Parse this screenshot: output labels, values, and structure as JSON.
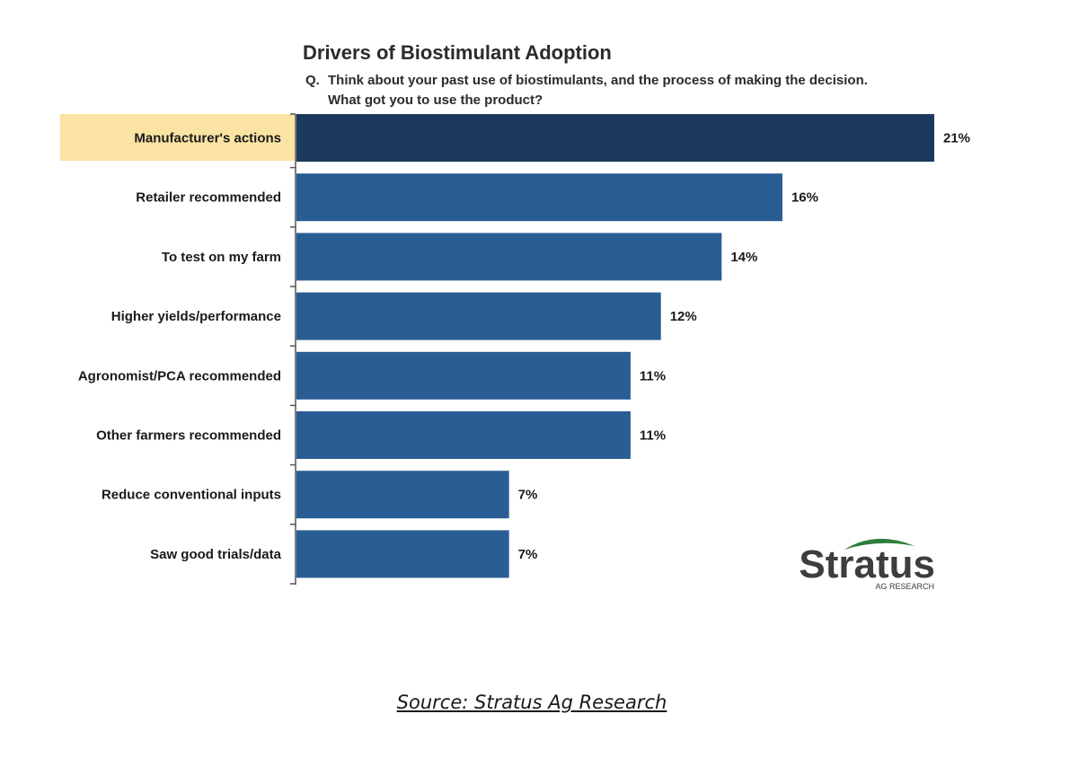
{
  "chart_data": {
    "type": "bar",
    "orientation": "horizontal",
    "title": "Drivers of Biostimulant Adoption",
    "question_prefix": "Q.",
    "question_lines": [
      "Think about your past use of biostimulants, and the process of making the decision.",
      "What got you to use the product?"
    ],
    "categories": [
      "Manufacturer's actions",
      "Retailer recommended",
      "To test on my farm",
      "Higher yields/performance",
      "Agronomist/PCA recommended",
      "Other farmers recommended",
      "Reduce conventional inputs",
      "Saw good trials/data"
    ],
    "values": [
      21,
      16,
      14,
      12,
      11,
      11,
      7,
      7
    ],
    "value_labels": [
      "21%",
      "16%",
      "14%",
      "12%",
      "11%",
      "11%",
      "7%",
      "7%"
    ],
    "unit": "%",
    "xlim": [
      0,
      21
    ],
    "highlighted_category": "Manufacturer's actions",
    "colors": {
      "highlight_bar": "#1b3a5c",
      "bar": "#2a5d94",
      "highlight_label_bg": "#fbe3a3",
      "axis": "#555555"
    },
    "legend": "none",
    "grid": false
  },
  "logo": {
    "name": "Stratus",
    "subtitle": "AG RESEARCH",
    "arc_color": "#2e7d3c"
  },
  "source": {
    "text": "Source: Stratus Ag Research"
  }
}
